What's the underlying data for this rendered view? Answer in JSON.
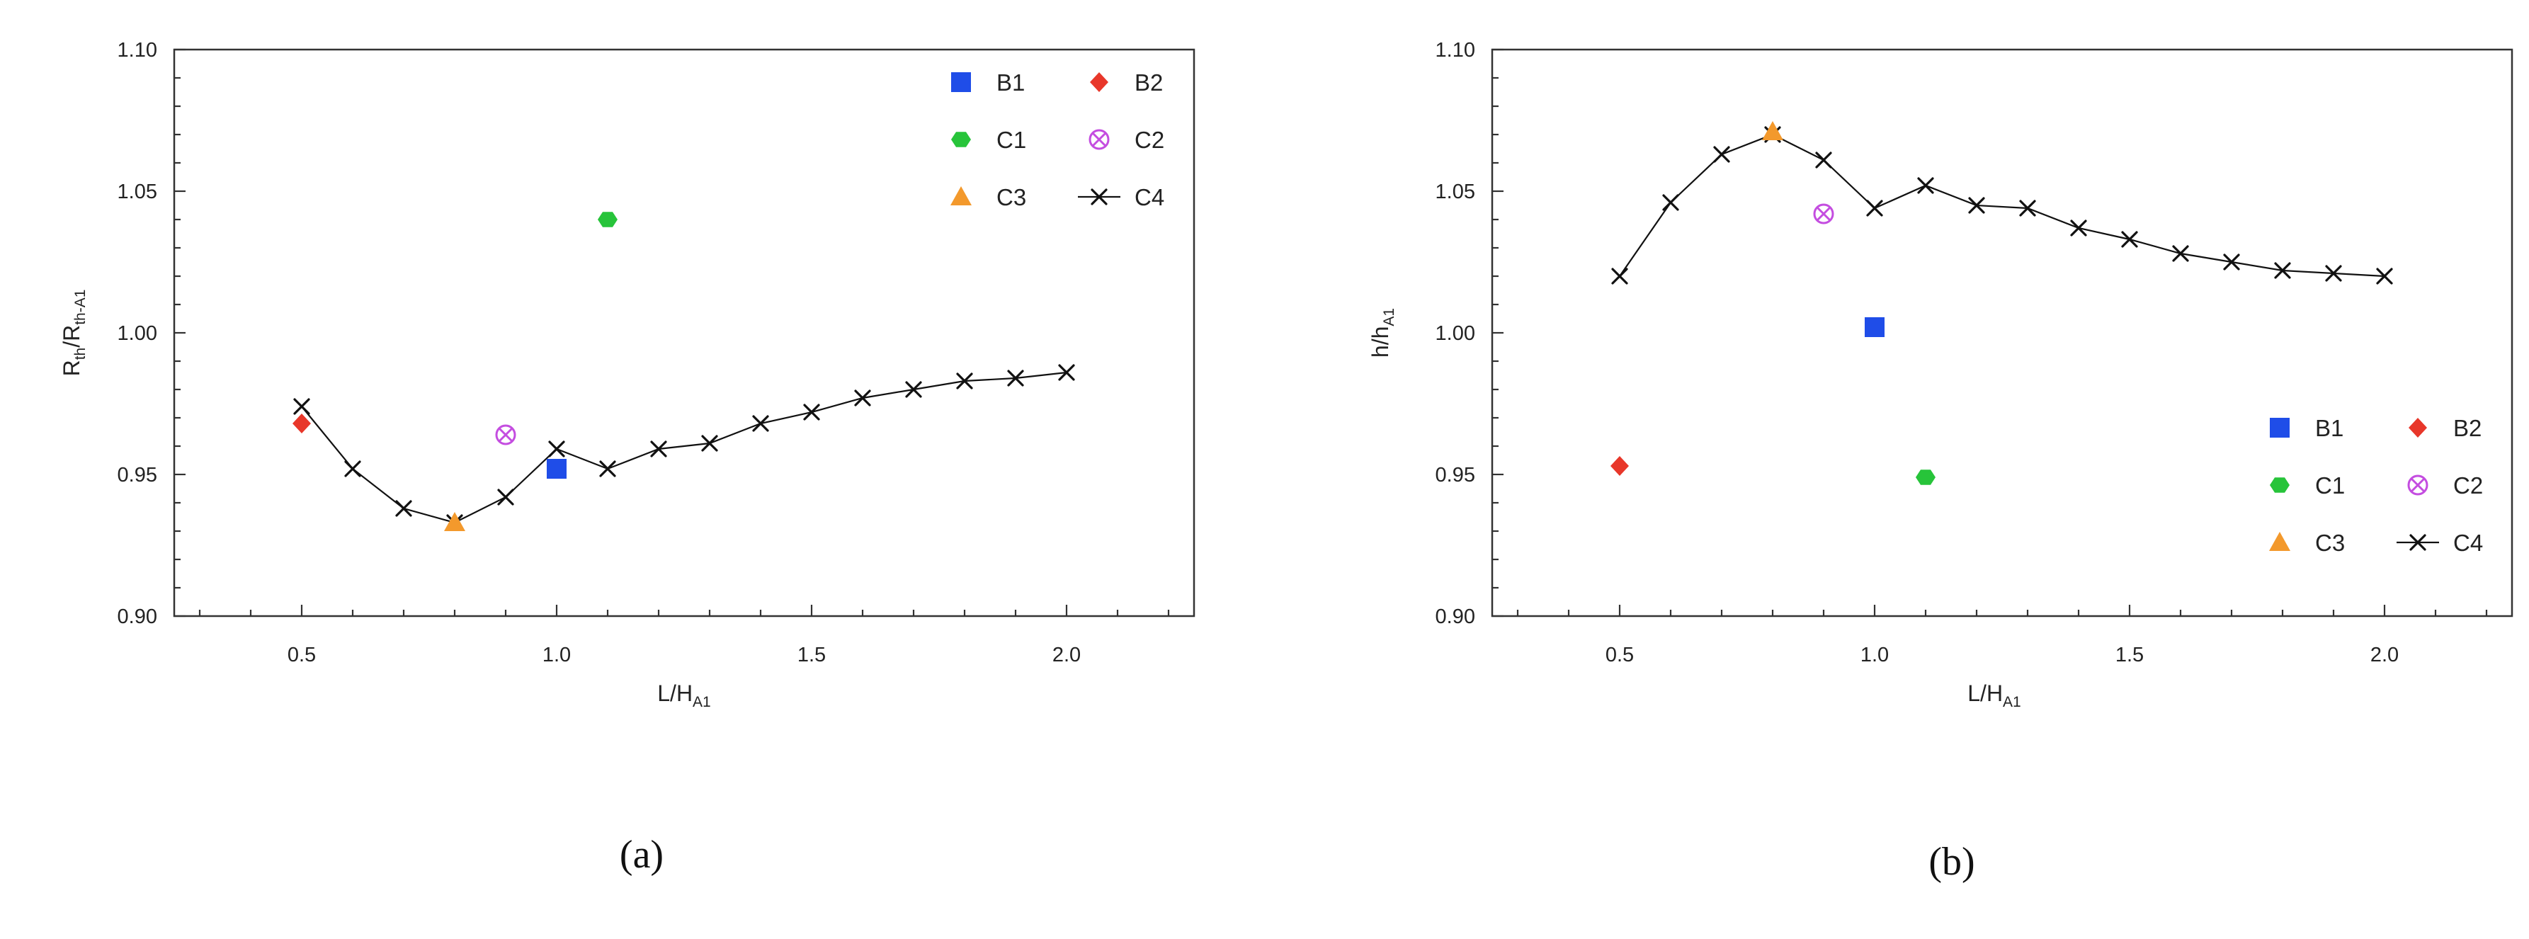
{
  "chart_data": [
    {
      "type": "scatter",
      "panel_label": "(a)",
      "ylabel": {
        "main": "R",
        "sub1": "th",
        "mid": "/R",
        "sub2": "th-A1"
      },
      "xlabel": {
        "main": "L/H",
        "sub": "A1"
      },
      "xlim": [
        0.25,
        2.25
      ],
      "ylim": [
        0.9,
        1.1
      ],
      "x_ticks": [
        "0.5",
        "1.0",
        "1.5",
        "2.0"
      ],
      "y_ticks": [
        "0.90",
        "0.95",
        "1.00",
        "1.05",
        "1.10"
      ],
      "legend_position": "top-right",
      "series": [
        {
          "name": "B1",
          "marker": "square",
          "color": "#1f4de8",
          "points": [
            [
              1.0,
              0.952
            ]
          ]
        },
        {
          "name": "B2",
          "marker": "diamond",
          "color": "#e8372a",
          "points": [
            [
              0.5,
              0.968
            ]
          ]
        },
        {
          "name": "C1",
          "marker": "hexagon",
          "color": "#27c43a",
          "points": [
            [
              1.1,
              1.04
            ]
          ]
        },
        {
          "name": "C2",
          "marker": "circle-x",
          "color": "#c44de0",
          "points": [
            [
              0.9,
              0.964
            ]
          ]
        },
        {
          "name": "C3",
          "marker": "triangle",
          "color": "#f3992c",
          "points": [
            [
              0.8,
              0.933
            ]
          ]
        },
        {
          "name": "C4",
          "marker": "x-line",
          "color": "#111111",
          "points": [
            [
              0.5,
              0.974
            ],
            [
              0.6,
              0.952
            ],
            [
              0.7,
              0.938
            ],
            [
              0.8,
              0.933
            ],
            [
              0.9,
              0.942
            ],
            [
              1.0,
              0.959
            ],
            [
              1.1,
              0.952
            ],
            [
              1.2,
              0.959
            ],
            [
              1.3,
              0.961
            ],
            [
              1.4,
              0.968
            ],
            [
              1.5,
              0.972
            ],
            [
              1.6,
              0.977
            ],
            [
              1.7,
              0.98
            ],
            [
              1.8,
              0.983
            ],
            [
              1.9,
              0.984
            ],
            [
              2.0,
              0.986
            ]
          ]
        }
      ]
    },
    {
      "type": "scatter",
      "panel_label": "(b)",
      "ylabel": {
        "main": "h/h",
        "sub": "A1"
      },
      "xlabel": {
        "main": "L/H",
        "sub": "A1"
      },
      "xlim": [
        0.25,
        2.25
      ],
      "ylim": [
        0.9,
        1.1
      ],
      "x_ticks": [
        "0.5",
        "1.0",
        "1.5",
        "2.0"
      ],
      "y_ticks": [
        "0.90",
        "0.95",
        "1.00",
        "1.05",
        "1.10"
      ],
      "legend_position": "bottom-right",
      "series": [
        {
          "name": "B1",
          "marker": "square",
          "color": "#1f4de8",
          "points": [
            [
              1.0,
              1.002
            ]
          ]
        },
        {
          "name": "B2",
          "marker": "diamond",
          "color": "#e8372a",
          "points": [
            [
              0.5,
              0.953
            ]
          ]
        },
        {
          "name": "C1",
          "marker": "hexagon",
          "color": "#27c43a",
          "points": [
            [
              1.1,
              0.949
            ]
          ]
        },
        {
          "name": "C2",
          "marker": "circle-x",
          "color": "#c44de0",
          "points": [
            [
              0.9,
              1.042
            ]
          ]
        },
        {
          "name": "C3",
          "marker": "triangle",
          "color": "#f3992c",
          "points": [
            [
              0.8,
              1.071
            ]
          ]
        },
        {
          "name": "C4",
          "marker": "x-line",
          "color": "#111111",
          "points": [
            [
              0.5,
              1.02
            ],
            [
              0.6,
              1.046
            ],
            [
              0.7,
              1.063
            ],
            [
              0.8,
              1.07
            ],
            [
              0.9,
              1.061
            ],
            [
              1.0,
              1.044
            ],
            [
              1.1,
              1.052
            ],
            [
              1.2,
              1.045
            ],
            [
              1.3,
              1.044
            ],
            [
              1.4,
              1.037
            ],
            [
              1.5,
              1.033
            ],
            [
              1.6,
              1.028
            ],
            [
              1.7,
              1.025
            ],
            [
              1.8,
              1.022
            ],
            [
              1.9,
              1.021
            ],
            [
              2.0,
              1.02
            ]
          ]
        }
      ]
    }
  ]
}
